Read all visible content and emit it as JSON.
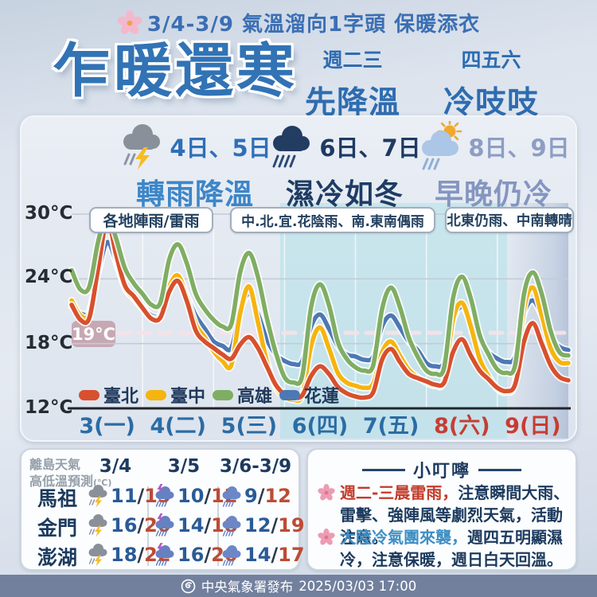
{
  "header": {
    "notice": "3/4-3/9 氣溫溜向1字頭 保暖添衣",
    "blossom_icon": "blossom-icon",
    "title": "乍暖還寒",
    "sub1_top": "週二三",
    "sub1_main": "先降溫",
    "sub2_top": "四五六",
    "sub2_main": "冷吱吱"
  },
  "forecast_groups": [
    {
      "icon": "thunderstorm-icon",
      "dates": "4日、5日",
      "headline": "轉雨降溫",
      "region_note": "各地陣雨/雷雨",
      "date_color": "#2e6fb7",
      "headline_color": "#3c86c8"
    },
    {
      "icon": "rain-cloud-icon",
      "dates": "6日、7日",
      "headline": "濕冷如冬",
      "region_note": "中.北.宜.花陰雨、南.東南偶雨",
      "date_color": "#1d3a63",
      "headline_color": "#1e3c64"
    },
    {
      "icon": "sun-shower-icon",
      "dates": "8日、9日",
      "headline": "早晚仍冷",
      "region_note": "北東仍雨、中南轉晴",
      "date_color": "#8d9dc4",
      "headline_color": "#8496c0"
    }
  ],
  "chart_data": {
    "type": "line",
    "x_labels": [
      "3(一)",
      "4(二)",
      "5(三)",
      "6(四)",
      "7(五)",
      "8(六)",
      "9(日)"
    ],
    "weekend_indices": [
      5,
      6
    ],
    "points_per_day": 8,
    "sampling": "3-hourly",
    "ylim": [
      12,
      30
    ],
    "yticks": [
      30,
      24,
      18,
      12
    ],
    "ytick_labels": [
      "30°C",
      "24°C",
      "18°C",
      "12°C"
    ],
    "grid": "horizontal gridlines + faint day-boundary verticals",
    "legend_position": "bottom-left",
    "ref_line": {
      "value": 19,
      "label": "19°C"
    },
    "highlight_band": {
      "from_day": "6(四)",
      "to_day": "8(六)"
    },
    "series": [
      {
        "name": "臺北",
        "color": "#d8502e",
        "values": [
          21.6,
          20.2,
          20.4,
          25.0,
          29.4,
          26.3,
          23.4,
          22.4,
          21.3,
          20.3,
          20.4,
          22.8,
          23.8,
          21.9,
          19.2,
          18.2,
          17.6,
          17.0,
          16.6,
          17.9,
          18.6,
          17.6,
          15.9,
          14.2,
          13.3,
          13.0,
          13.2,
          15.0,
          15.9,
          15.2,
          14.0,
          13.4,
          13.1,
          13.0,
          13.5,
          16.5,
          17.5,
          16.3,
          15.2,
          14.8,
          14.5,
          14.2,
          14.4,
          17.2,
          18.4,
          16.9,
          15.5,
          14.7,
          13.9,
          13.6,
          14.2,
          18.2,
          19.9,
          18.0,
          16.0,
          14.9,
          14.6
        ]
      },
      {
        "name": "臺中",
        "color": "#f6b40e",
        "values": [
          22.0,
          20.6,
          20.8,
          25.2,
          29.6,
          26.0,
          23.2,
          22.2,
          21.2,
          20.4,
          20.6,
          23.3,
          24.3,
          22.3,
          19.8,
          18.6,
          17.3,
          16.4,
          16.0,
          20.8,
          23.3,
          20.0,
          16.4,
          14.0,
          13.1,
          12.8,
          13.2,
          17.8,
          19.5,
          17.6,
          15.3,
          14.4,
          14.1,
          13.9,
          14.3,
          17.2,
          18.2,
          16.9,
          15.6,
          14.9,
          14.4,
          14.1,
          14.6,
          20.2,
          21.8,
          19.6,
          16.6,
          15.0,
          13.8,
          13.5,
          14.4,
          21.2,
          23.2,
          20.6,
          17.6,
          16.3,
          16.2
        ]
      },
      {
        "name": "高雄",
        "color": "#7fae63",
        "values": [
          24.8,
          23.0,
          23.3,
          27.5,
          30.0,
          27.8,
          25.0,
          23.6,
          22.6,
          21.6,
          21.8,
          25.8,
          27.2,
          25.4,
          22.6,
          21.2,
          20.2,
          19.6,
          19.8,
          24.6,
          26.4,
          24.2,
          20.4,
          17.2,
          14.9,
          14.4,
          15.0,
          21.4,
          23.5,
          21.6,
          18.2,
          16.6,
          15.8,
          15.5,
          16.0,
          21.2,
          23.2,
          21.4,
          18.6,
          16.8,
          15.5,
          15.2,
          15.8,
          22.2,
          24.2,
          22.2,
          18.8,
          17.0,
          15.6,
          15.3,
          16.0,
          22.6,
          24.6,
          22.6,
          19.2,
          17.2,
          16.9
        ]
      },
      {
        "name": "花蓮",
        "color": "#4d78b4",
        "values": [
          21.4,
          20.8,
          21.0,
          24.6,
          27.4,
          25.6,
          23.2,
          22.2,
          21.4,
          20.6,
          20.7,
          22.9,
          23.7,
          22.4,
          20.6,
          19.4,
          18.2,
          17.8,
          17.6,
          21.0,
          22.6,
          20.8,
          18.4,
          17.0,
          16.4,
          16.1,
          16.4,
          19.6,
          20.7,
          19.4,
          17.8,
          17.0,
          16.8,
          16.5,
          16.8,
          19.6,
          20.6,
          19.5,
          18.2,
          17.4,
          16.2,
          15.9,
          16.3,
          20.2,
          21.4,
          20.0,
          18.4,
          17.2,
          16.6,
          16.3,
          16.8,
          20.8,
          22.0,
          20.6,
          18.6,
          17.7,
          17.4
        ]
      }
    ]
  },
  "islands": {
    "title_line1": "離島天氣",
    "title_line2": "高低溫預測",
    "title_unit": "(℃)",
    "col_headers": [
      "3/4",
      "3/5",
      "3/6-3/9"
    ],
    "sep": "/",
    "rows": [
      {
        "name": "馬祖",
        "cells": [
          {
            "icon": "thunderstorm-icon",
            "lo": "11",
            "hi": "15"
          },
          {
            "icon": "storm-rain-icon",
            "lo": "10",
            "hi": "12"
          },
          {
            "icon": "rain-icon",
            "lo": "9",
            "hi": "12"
          }
        ]
      },
      {
        "name": "金門",
        "cells": [
          {
            "icon": "thunderstorm-icon",
            "lo": "16",
            "hi": "20"
          },
          {
            "icon": "storm-rain-icon",
            "lo": "14",
            "hi": "18"
          },
          {
            "icon": "rain-icon",
            "lo": "12",
            "hi": "19"
          }
        ]
      },
      {
        "name": "澎湖",
        "cells": [
          {
            "icon": "thunderstorm-icon",
            "lo": "18",
            "hi": "22"
          },
          {
            "icon": "storm-rain-icon",
            "lo": "16",
            "hi": "20"
          },
          {
            "icon": "rain-icon",
            "lo": "14",
            "hi": "17"
          }
        ]
      }
    ]
  },
  "tips": {
    "title": "小叮嚀",
    "items": [
      {
        "icon": "tip-blossom-icon",
        "highlight": "週二-三晨雷雨，",
        "highlight_color": "#c23b2a",
        "rest": "注意瞬間大雨、雷擊、強陣風等劇烈天氣，活動注意。"
      },
      {
        "icon": "tip-blossom-icon",
        "highlight": "大陸冷氣團來襲，",
        "highlight_color": "#3f8fc5",
        "rest": "週四五明顯濕冷，注意保暖，週日白天回溫。"
      }
    ]
  },
  "footer": {
    "logo_icon": "cwa-logo-icon",
    "agency": "中央氣象署發布",
    "datetime": "2025/03/03 17:00"
  }
}
